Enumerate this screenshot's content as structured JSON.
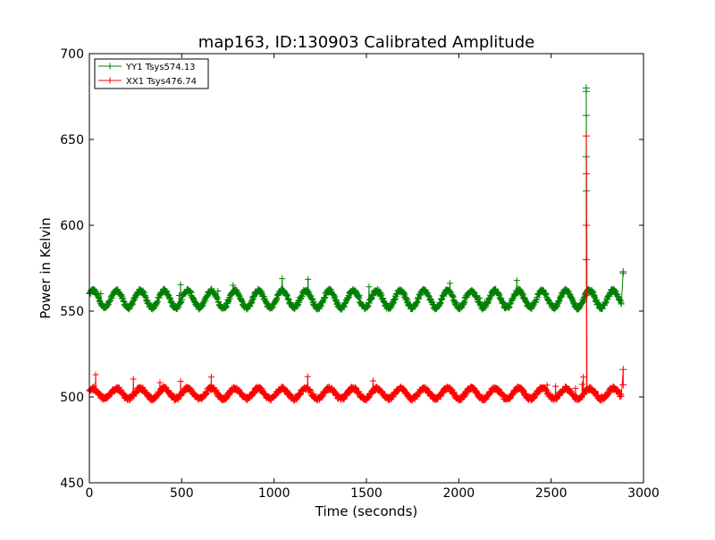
{
  "chart_data": {
    "type": "line",
    "title": "map163, ID:130903 Calibrated Amplitude",
    "xlabel": "Time (seconds)",
    "ylabel": "Power in Kelvin",
    "xlim": [
      0,
      3000
    ],
    "ylim": [
      450,
      700
    ],
    "xticks": [
      0,
      500,
      1000,
      1500,
      2000,
      2500,
      3000
    ],
    "yticks": [
      450,
      500,
      550,
      600,
      650,
      700
    ],
    "grid": false,
    "legend_position": "top-left",
    "marker": "plus",
    "series": [
      {
        "name": "YY1 Tsys574.13",
        "color": "#008000",
        "baseline": 557,
        "oscillation_amplitude": 5,
        "oscillation_period_s": 128,
        "x_range": [
          0,
          2890
        ],
        "annotations_note": "spike at ~2690 s up to ~680 K; isolated points ~573 K at ~2890 s"
      },
      {
        "name": "XX1 Tsys476.74",
        "color": "#ff0000",
        "baseline": 502,
        "oscillation_amplitude": 3,
        "oscillation_period_s": 128,
        "x_range": [
          0,
          2890
        ],
        "annotations_note": "spike at ~2690 s up to ~652 K; isolated points ~516 K at ~2890 s"
      }
    ],
    "features": {
      "spike_x": 2690,
      "yy1_spike_points": [
        600,
        620,
        640,
        664,
        678,
        680
      ],
      "xx1_spike_points": [
        560,
        580,
        600,
        630,
        652
      ],
      "end_points_x": 2890,
      "yy1_end_points": [
        573,
        572
      ],
      "xx1_end_points": [
        516,
        507
      ]
    }
  }
}
